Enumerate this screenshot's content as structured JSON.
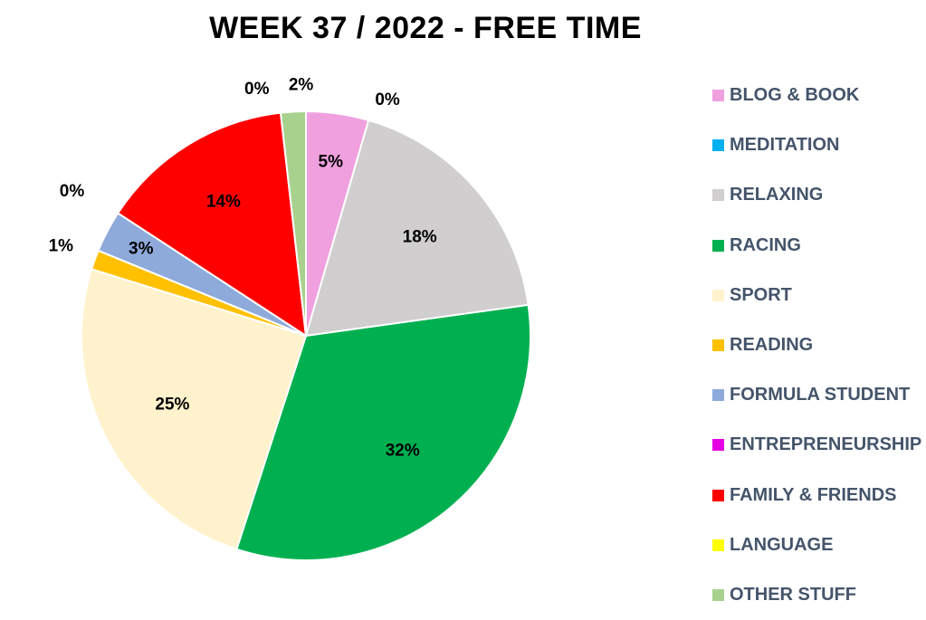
{
  "chart_data": {
    "type": "pie",
    "title": "WEEK 37 / 2022 - FREE TIME",
    "legend_position": "right",
    "slices": [
      {
        "name": "BLOG & BOOK",
        "value": 4.5,
        "label": "5%",
        "color": "#f0a0df"
      },
      {
        "name": "MEDITATION",
        "value": 0,
        "label": "0%",
        "color": "#00b0f0"
      },
      {
        "name": "RELAXING",
        "value": 18.3,
        "label": "18%",
        "color": "#d0cece"
      },
      {
        "name": "RACING",
        "value": 32.2,
        "label": "32%",
        "color": "#00b050"
      },
      {
        "name": "SPORT",
        "value": 24.8,
        "label": "25%",
        "color": "#fff2cc"
      },
      {
        "name": "READING",
        "value": 1.4,
        "label": "1%",
        "color": "#ffc000"
      },
      {
        "name": "FORMULA STUDENT",
        "value": 3.0,
        "label": "3%",
        "color": "#8eaadb"
      },
      {
        "name": "ENTREPRENEURSHIP",
        "value": 0,
        "label": "0%",
        "color": "#e600e6"
      },
      {
        "name": "FAMILY & FRIENDS",
        "value": 14.0,
        "label": "14%",
        "color": "#ff0000"
      },
      {
        "name": "LANGUAGE",
        "value": 0,
        "label": "0%",
        "color": "#ffff00"
      },
      {
        "name": "OTHER STUFF",
        "value": 1.8,
        "label": "2%",
        "color": "#a9d18e"
      }
    ]
  }
}
